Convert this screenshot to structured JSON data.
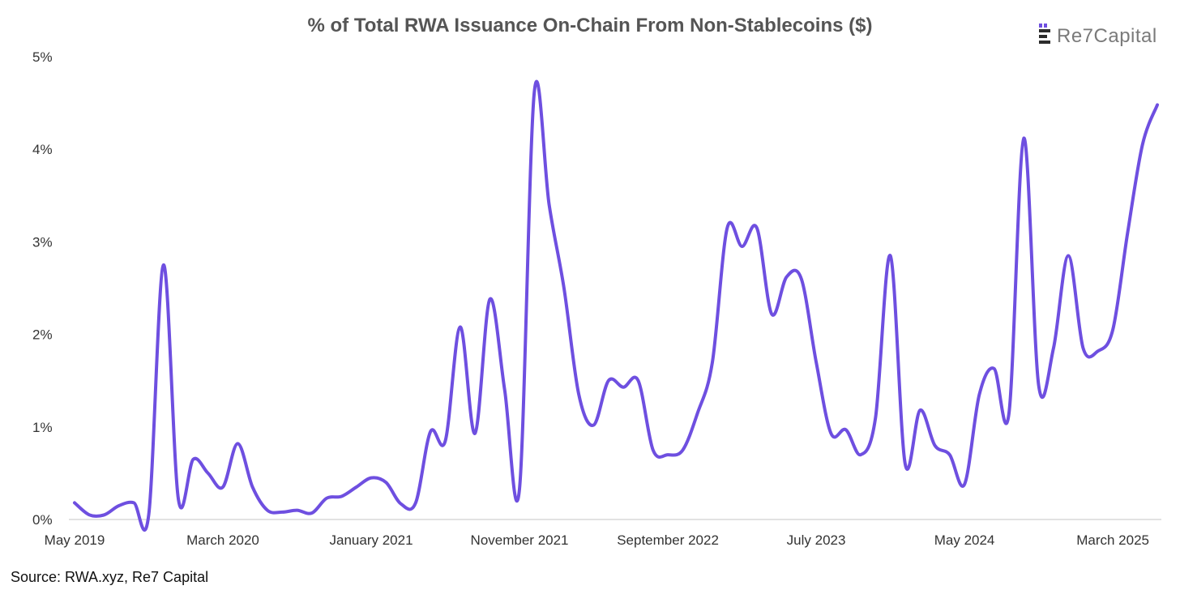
{
  "chart_data": {
    "type": "line",
    "title": "% of Total RWA Issuance On-Chain From Non-Stablecoins ($)",
    "xlabel": "",
    "ylabel": "",
    "ylim": [
      0,
      5
    ],
    "y_ticks": [
      "0%",
      "1%",
      "2%",
      "3%",
      "4%",
      "5%"
    ],
    "x_tick_labels": [
      "May 2019",
      "March 2020",
      "January 2021",
      "November 2021",
      "September 2022",
      "July 2023",
      "May 2024",
      "March 2025"
    ],
    "x_tick_index": [
      0,
      10,
      20,
      30,
      40,
      50,
      60,
      70
    ],
    "grid": false,
    "line_color": "#6e4fe0",
    "series": [
      {
        "name": "% of Total RWA Issuance On-Chain From Non-Stablecoins",
        "values": [
          0.18,
          0.05,
          0.05,
          0.15,
          0.18,
          0.05,
          2.75,
          0.22,
          0.65,
          0.5,
          0.35,
          0.82,
          0.35,
          0.1,
          0.08,
          0.1,
          0.07,
          0.23,
          0.25,
          0.35,
          0.45,
          0.4,
          0.17,
          0.18,
          0.95,
          0.85,
          2.08,
          0.93,
          2.38,
          1.4,
          0.33,
          4.62,
          3.4,
          2.5,
          1.35,
          1.02,
          1.5,
          1.43,
          1.5,
          0.75,
          0.7,
          0.75,
          1.15,
          1.7,
          3.15,
          2.95,
          3.15,
          2.22,
          2.62,
          2.6,
          1.7,
          0.93,
          0.97,
          0.7,
          1.1,
          2.85,
          0.6,
          1.18,
          0.8,
          0.7,
          0.38,
          1.35,
          1.63,
          1.15,
          4.12,
          1.45,
          1.85,
          2.85,
          1.85,
          1.82,
          2.05,
          3.1,
          4.05,
          4.48
        ]
      }
    ]
  },
  "source_text": "Source: RWA.xyz, Re7 Capital",
  "brand": {
    "name": "Re7Capital",
    "icon": "stacked-bars-logo-icon",
    "color_dark": "#2b2b2b",
    "color_accent": "#6e4fe0"
  }
}
